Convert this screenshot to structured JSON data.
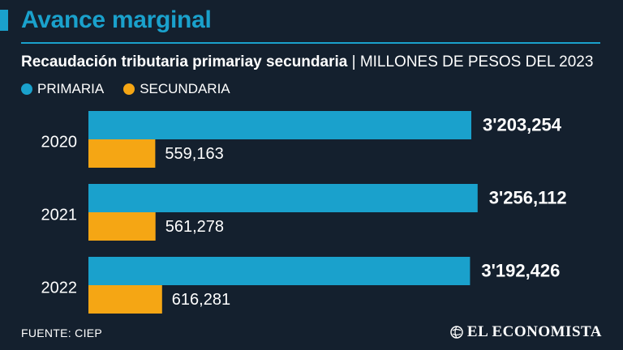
{
  "header": {
    "title": "Avance marginal",
    "subtitle_bold": "Recaudación tributaria primariay secundaria",
    "subtitle_sep": " | ",
    "subtitle_units": "MILLONES DE PESOS DEL 2023"
  },
  "legend": {
    "primary": "PRIMARIA",
    "secondary": "SECUNDARIA"
  },
  "colors": {
    "primary": "#1aa1cc",
    "secondary": "#f5a614",
    "background": "#14202e"
  },
  "footer": {
    "source": "FUENTE: CIEP",
    "brand": "EL ECONOMISTA"
  },
  "chart_data": {
    "type": "bar",
    "orientation": "horizontal",
    "title": "Recaudación tributaria primariay secundaria",
    "xlabel": "",
    "ylabel": "",
    "units": "MILLONES DE PESOS DEL 2023",
    "categories": [
      "2020",
      "2021",
      "2022"
    ],
    "series": [
      {
        "name": "PRIMARIA",
        "values": [
          3203254,
          3256112,
          3192426
        ],
        "labels": [
          "3'203,254",
          "3'256,112",
          "3'192,426"
        ]
      },
      {
        "name": "SECUNDARIA",
        "values": [
          559163,
          561278,
          616281
        ],
        "labels": [
          "559,163",
          "561,278",
          "616,281"
        ]
      }
    ],
    "xlim": [
      0,
      3500000
    ],
    "grid": false,
    "legend": "top-left"
  }
}
